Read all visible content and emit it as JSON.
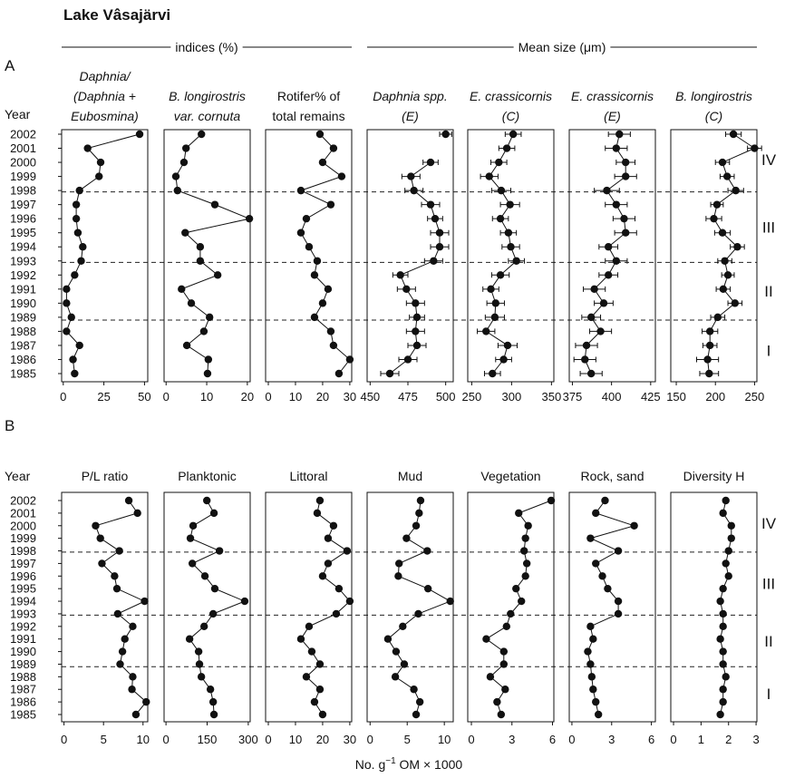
{
  "title": "Lake Vâsajärvi",
  "groups": [
    "indices (%)",
    "Mean size (μm)"
  ],
  "panel_labels": [
    "A",
    "B"
  ],
  "year_label": "Year",
  "years": [
    1985,
    1986,
    1987,
    1988,
    1989,
    1990,
    1991,
    1992,
    1993,
    1994,
    1995,
    1996,
    1997,
    1998,
    1999,
    2000,
    2001,
    2002
  ],
  "zone_labels": [
    "I",
    "II",
    "III",
    "IV"
  ],
  "zone_boundaries": [
    1988.8,
    1992.9,
    1997.9
  ],
  "x_label": [
    "No. g",
    "−1",
    " OM × 1000"
  ],
  "chart_data": [
    {
      "type": "line",
      "title": [
        "Daphnia/",
        "(Daphnia +",
        "Eubosmina)"
      ],
      "italic": true,
      "xlim": [
        -1,
        52
      ],
      "xticks": [
        0,
        25,
        50
      ],
      "values": [
        7,
        6,
        10,
        2,
        5,
        2,
        2,
        7,
        11,
        12,
        9,
        8,
        8,
        10,
        22,
        23,
        15,
        47
      ]
    },
    {
      "type": "line",
      "title": [
        "B. longirostris",
        "var. cornuta"
      ],
      "italic": true,
      "xlim": [
        -0.5,
        20.7
      ],
      "xticks": [
        0,
        10,
        20
      ],
      "values": [
        10.2,
        10.4,
        5.1,
        9.3,
        10.7,
        6.2,
        3.8,
        12.7,
        8.4,
        8.4,
        4.7,
        20.5,
        12,
        2.8,
        2.4,
        4.4,
        4.9,
        8.7
      ]
    },
    {
      "type": "line",
      "title": [
        "Rotifer% of",
        "total remains"
      ],
      "italic": false,
      "xlim": [
        -1,
        30.7
      ],
      "xticks": [
        0,
        10,
        20,
        30
      ],
      "values": [
        26,
        30,
        24,
        23,
        17,
        20,
        22,
        17,
        18,
        15,
        12,
        14,
        23,
        12,
        27,
        20,
        24,
        19
      ]
    },
    {
      "type": "line",
      "title": [
        "Daphnia spp.",
        "(E)"
      ],
      "italic": true,
      "xlim": [
        448,
        505
      ],
      "xticks": [
        450,
        475,
        500
      ],
      "values": [
        463,
        475,
        481,
        480,
        481,
        480,
        474,
        470,
        492,
        496,
        496,
        493,
        490,
        479,
        477,
        490,
        null,
        500
      ],
      "errors": [
        6,
        6,
        6,
        6,
        5,
        6,
        6,
        5,
        6,
        6,
        6,
        5,
        6,
        6,
        6,
        5,
        null,
        4
      ]
    },
    {
      "type": "line",
      "title": [
        "E. crassicornis",
        "(C)"
      ],
      "italic": true,
      "xlim": [
        245,
        353
      ],
      "xticks": [
        250,
        300,
        350
      ],
      "values": [
        276,
        290,
        295,
        268,
        279,
        280,
        274,
        286,
        306,
        299,
        296,
        286,
        298,
        287,
        272,
        284,
        294,
        302
      ],
      "errors": [
        10,
        10,
        12,
        11,
        12,
        11,
        10,
        11,
        10,
        11,
        10,
        10,
        12,
        12,
        11,
        10,
        10,
        10
      ]
    },
    {
      "type": "line",
      "title": [
        "E. crassicornis",
        "(E)"
      ],
      "italic": true,
      "xlim": [
        373,
        428
      ],
      "xticks": [
        375,
        400,
        425
      ],
      "values": [
        387,
        383,
        384,
        393,
        387,
        395,
        389,
        398,
        403,
        398,
        409,
        408,
        403,
        397,
        409,
        409,
        403,
        405
      ],
      "errors": [
        7,
        7,
        7,
        7,
        6,
        6,
        7,
        6,
        7,
        6,
        7,
        7,
        7,
        8,
        7,
        6,
        7,
        7
      ]
    },
    {
      "type": "line",
      "title": [
        "B. longirostris",
        "(C)"
      ],
      "italic": true,
      "xlim": [
        143,
        253
      ],
      "xticks": [
        150,
        200,
        250
      ],
      "values": [
        192,
        190,
        193,
        193,
        203,
        225,
        210,
        216,
        212,
        228,
        209,
        198,
        202,
        226,
        215,
        209,
        250,
        223
      ],
      "errors": [
        12,
        14,
        9,
        10,
        9,
        9,
        9,
        8,
        9,
        9,
        10,
        10,
        8,
        10,
        9,
        9,
        9,
        10
      ]
    },
    {
      "type": "line",
      "title": [
        "P/L ratio"
      ],
      "italic": false,
      "xlim": [
        -0.3,
        10.6
      ],
      "xticks": [
        0,
        5,
        10
      ],
      "values": [
        9.1,
        10.4,
        8.6,
        8.7,
        7.1,
        7.4,
        7.7,
        8.7,
        6.8,
        10.2,
        6.7,
        6.4,
        4.8,
        7.0,
        4.6,
        4.0,
        9.3,
        8.2
      ]
    },
    {
      "type": "line",
      "title": [
        "Planktonic"
      ],
      "italic": false,
      "xlim": [
        -7,
        307
      ],
      "xticks": [
        0,
        150,
        300
      ],
      "values": [
        175,
        172,
        162,
        129,
        122,
        119,
        86,
        139,
        172,
        287,
        178,
        142,
        96,
        195,
        89,
        99,
        175,
        149
      ]
    },
    {
      "type": "line",
      "title": [
        "Littoral"
      ],
      "italic": false,
      "xlim": [
        -1,
        30.7
      ],
      "xticks": [
        0,
        10,
        20,
        30
      ],
      "values": [
        20,
        17,
        19,
        14,
        19,
        16,
        12,
        15,
        25,
        30,
        26,
        20,
        22,
        29,
        22,
        24,
        18,
        19
      ]
    },
    {
      "type": "line",
      "title": [
        "Mud"
      ],
      "italic": false,
      "xlim": [
        -0.4,
        11.2
      ],
      "xticks": [
        0,
        5,
        10
      ],
      "values": [
        6.2,
        6.7,
        5.9,
        3.4,
        4.6,
        3.5,
        2.4,
        4.4,
        6.5,
        10.8,
        7.8,
        3.8,
        3.9,
        7.7,
        4.9,
        6.2,
        6.6,
        6.8
      ]
    },
    {
      "type": "line",
      "title": [
        "Vegetation"
      ],
      "italic": false,
      "xlim": [
        -0.27,
        6.1
      ],
      "xticks": [
        0,
        3,
        6
      ],
      "values": [
        2.2,
        1.9,
        2.5,
        1.4,
        2.4,
        2.4,
        1.1,
        2.6,
        2.9,
        3.7,
        3.3,
        4.0,
        4.1,
        3.9,
        4.0,
        4.2,
        3.5,
        5.9
      ]
    },
    {
      "type": "line",
      "title": [
        "Rock, sand"
      ],
      "italic": false,
      "xlim": [
        -0.2,
        6.3
      ],
      "xticks": [
        0,
        3,
        6
      ],
      "values": [
        2.0,
        1.8,
        1.6,
        1.5,
        1.4,
        1.2,
        1.6,
        1.4,
        3.5,
        3.5,
        2.7,
        2.3,
        1.8,
        3.5,
        1.4,
        4.7,
        1.8,
        2.5
      ]
    },
    {
      "type": "line",
      "title": [
        "Diversity H"
      ],
      "italic": false,
      "xlim": [
        -0.1,
        3.03
      ],
      "xticks": [
        0,
        1,
        2,
        3
      ],
      "values": [
        1.7,
        1.8,
        1.8,
        1.9,
        1.8,
        1.8,
        1.7,
        1.8,
        1.8,
        1.7,
        1.8,
        2.0,
        1.9,
        2.0,
        2.1,
        2.1,
        1.8,
        1.9
      ]
    }
  ]
}
